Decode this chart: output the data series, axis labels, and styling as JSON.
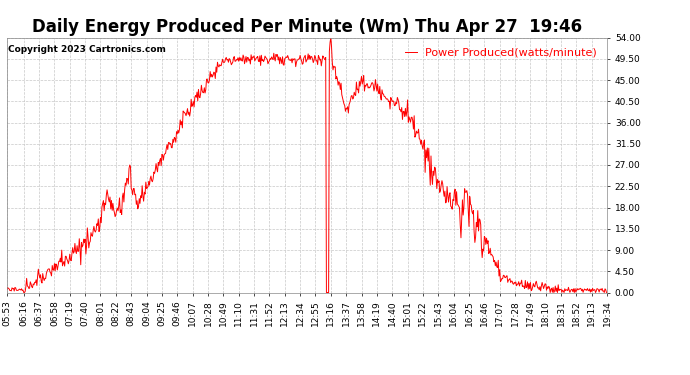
{
  "title": "Daily Energy Produced Per Minute (Wm) Thu Apr 27  19:46",
  "copyright": "Copyright 2023 Cartronics.com",
  "legend_label": "Power Produced(watts/minute)",
  "line_color": "#ff0000",
  "background_color": "#ffffff",
  "grid_color": "#c8c8c8",
  "ylim": [
    0.0,
    54.0
  ],
  "yticks": [
    0.0,
    4.5,
    9.0,
    13.5,
    18.0,
    22.5,
    27.0,
    31.5,
    36.0,
    40.5,
    45.0,
    49.5,
    54.0
  ],
  "xtick_labels": [
    "05:53",
    "06:16",
    "06:37",
    "06:58",
    "07:19",
    "07:40",
    "08:01",
    "08:22",
    "08:43",
    "09:04",
    "09:25",
    "09:46",
    "10:07",
    "10:28",
    "10:49",
    "11:10",
    "11:31",
    "11:52",
    "12:13",
    "12:34",
    "12:55",
    "13:16",
    "13:37",
    "13:58",
    "14:19",
    "14:40",
    "15:01",
    "15:22",
    "15:43",
    "16:04",
    "16:25",
    "16:46",
    "17:07",
    "17:28",
    "17:49",
    "18:10",
    "18:31",
    "18:52",
    "19:13",
    "19:34"
  ],
  "title_fontsize": 12,
  "axis_fontsize": 6.5,
  "copyright_fontsize": 6.5,
  "legend_fontsize": 8
}
